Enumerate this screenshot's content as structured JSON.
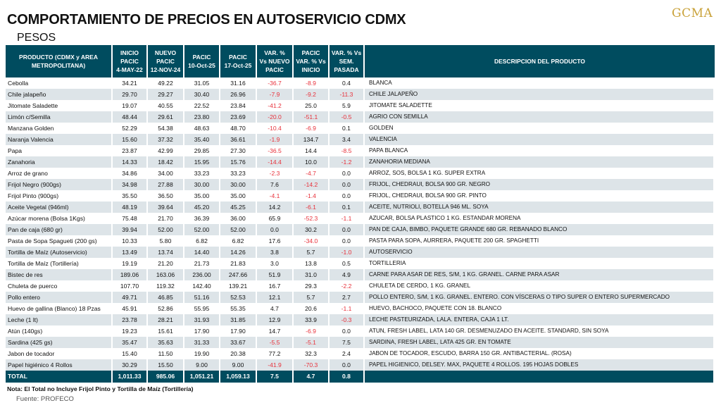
{
  "title": "COMPORTAMIENTO DE PRECIOS EN AUTOSERVICIO CDMX",
  "subtitle": "PESOS",
  "logo": "GCMA",
  "colors": {
    "header": "#004c5f",
    "negative": "#e8313b",
    "alt_row": "#dde4e8",
    "logo": "#c9a23a"
  },
  "headers": [
    [
      "PRODUCTO (CDMX y AREA",
      "METROPOLITANA)"
    ],
    [
      "INICIO",
      "PACIC",
      "4-MAY-22"
    ],
    [
      "NUEVO",
      "PACIC",
      "12-NOV-24"
    ],
    [
      "PACIC",
      "10-Oct-25"
    ],
    [
      "PACIC",
      "17-Oct-25"
    ],
    [
      "VAR. %",
      "Vs  NUEVO",
      "PACIC"
    ],
    [
      "PACIC",
      "VAR. % Vs",
      "INICIO"
    ],
    [
      "VAR. % Vs",
      "SEM.",
      "PASADA"
    ],
    [
      "DESCRIPCION DEL PRODUCTO"
    ]
  ],
  "rows": [
    [
      "Cebolla",
      "34.21",
      "49.22",
      "31.05",
      "31.16",
      "-36.7",
      "-8.9",
      "0.4",
      "BLANCA"
    ],
    [
      "Chile jalapeño",
      "29.70",
      "29.27",
      "30.40",
      "26.96",
      "-7.9",
      "-9.2",
      "-11.3",
      "CHILE JALAPEÑO"
    ],
    [
      "Jitomate Saladette",
      "19.07",
      "40.55",
      "22.52",
      "23.84",
      "-41.2",
      "25.0",
      "5.9",
      "JITOMATE SALADETTE"
    ],
    [
      "Limón c/Semilla",
      "48.44",
      "29.61",
      "23.80",
      "23.69",
      "-20.0",
      "-51.1",
      "-0.5",
      "AGRIO CON SEMILLA"
    ],
    [
      "Manzana Golden",
      "52.29",
      "54.38",
      "48.63",
      "48.70",
      "-10.4",
      "-6.9",
      "0.1",
      "GOLDEN"
    ],
    [
      "Naranja Valencia",
      "15.60",
      "37.32",
      "35.40",
      "36.61",
      "-1.9",
      "134.7",
      "3.4",
      "VALENCIA"
    ],
    [
      "Papa",
      "23.87",
      "42.99",
      "29.85",
      "27.30",
      "-36.5",
      "14.4",
      "-8.5",
      "PAPA BLANCA"
    ],
    [
      "Zanahoria",
      "14.33",
      "18.42",
      "15.95",
      "15.76",
      "-14.4",
      "10.0",
      "-1.2",
      "ZANAHORIA MEDIANA"
    ],
    [
      "Arroz de grano",
      "34.86",
      "34.00",
      "33.23",
      "33.23",
      "-2.3",
      "-4.7",
      "0.0",
      "ARROZ, SOS, BOLSA 1 KG. SUPER EXTRA"
    ],
    [
      "Frijol Negro (900gs)",
      "34.98",
      "27.88",
      "30.00",
      "30.00",
      "7.6",
      "-14.2",
      "0.0",
      "FRIJOL, CHEDRAUI, BOLSA 900 GR. NEGRO"
    ],
    [
      "Frijol Pinto (900gs)",
      "35.50",
      "36.50",
      "35.00",
      "35.00",
      "-4.1",
      "-1.4",
      "0.0",
      "FRIJOL, CHEDRAUI, BOLSA 900 GR. PINTO"
    ],
    [
      "Aceite Vegetal (946ml)",
      "48.19",
      "39.64",
      "45.20",
      "45.25",
      "14.2",
      "-6.1",
      "0.1",
      "ACEITE, NUTRIOLI, BOTELLA 946 ML. SOYA"
    ],
    [
      "Azúcar morena (Bolsa 1Kgs)",
      "75.48",
      "21.70",
      "36.39",
      "36.00",
      "65.9",
      "-52.3",
      "-1.1",
      "AZUCAR, BOLSA PLASTICO 1 KG. ESTANDAR MORENA"
    ],
    [
      "Pan de caja (680 gr)",
      "39.94",
      "52.00",
      "52.00",
      "52.00",
      "0.0",
      "30.2",
      "0.0",
      "PAN DE CAJA, BIMBO, PAQUETE GRANDE 680 GR. REBANADO BLANCO"
    ],
    [
      "Pasta de Sopa Spagueti (200 gs)",
      "10.33",
      "5.80",
      "6.82",
      "6.82",
      "17.6",
      "-34.0",
      "0.0",
      "PASTA PARA SOPA, AURRERA, PAQUETE 200 GR. SPAGHETTI"
    ],
    [
      "Tortilla de Maíz (Autoservicio)",
      "13.49",
      "13.74",
      "14.40",
      "14.26",
      "3.8",
      "5.7",
      "-1.0",
      "AUTOSERVICIO"
    ],
    [
      "Tortilla de Maíz (Tortillería)",
      "19.19",
      "21.20",
      "21.73",
      "21.83",
      "3.0",
      "13.8",
      "0.5",
      "TORTILLERIA"
    ],
    [
      "Bistec de res",
      "189.06",
      "163.06",
      "236.00",
      "247.66",
      "51.9",
      "31.0",
      "4.9",
      "CARNE PARA ASAR DE RES, S/M, 1 KG. GRANEL. CARNE PARA ASAR"
    ],
    [
      "Chuleta de puerco",
      "107.70",
      "119.32",
      "142.40",
      "139.21",
      "16.7",
      "29.3",
      "-2.2",
      "CHULETA DE CERDO, 1 KG. GRANEL"
    ],
    [
      "Pollo entero",
      "49.71",
      "46.85",
      "51.16",
      "52.53",
      "12.1",
      "5.7",
      "2.7",
      "POLLO ENTERO, S/M, 1 KG. GRANEL. ENTERO. CON VÍSCERAS O TIPO SUPER O ENTERO SUPERMERCADO"
    ],
    [
      "Huevo de gallina (Blanco) 18 Pzas",
      "45.91",
      "52.86",
      "55.95",
      "55.35",
      "4.7",
      "20.6",
      "-1.1",
      "HUEVO, BACHOCO, PAQUETE CON 18. BLANCO"
    ],
    [
      "Leche (1 lt)",
      "23.78",
      "28.21",
      "31.93",
      "31.85",
      "12.9",
      "33.9",
      "-0.3",
      "LECHE PASTEURIZADA, LALA. ENTERA, CAJA 1 LT."
    ],
    [
      "Atún (140gs)",
      "19.23",
      "15.61",
      "17.90",
      "17.90",
      "14.7",
      "-6.9",
      "0.0",
      "ATUN, FRESH LABEL, LATA 140 GR. DESMENUZADO EN ACEITE. STANDARD, SIN SOYA"
    ],
    [
      "Sardina (425 gs)",
      "35.47",
      "35.63",
      "31.33",
      "33.67",
      "-5.5",
      "-5.1",
      "7.5",
      "SARDINA, FRESH LABEL, LATA 425 GR. EN TOMATE"
    ],
    [
      "Jabon de tocador",
      "15.40",
      "11.50",
      "19.90",
      "20.38",
      "77.2",
      "32.3",
      "2.4",
      "JABON DE TOCADOR, ESCUDO, BARRA 150 GR. ANTIBACTERIAL. (ROSA)"
    ],
    [
      "Papel higiénico 4 Rollos",
      "30.29",
      "15.50",
      "9.00",
      "9.00",
      "-41.9",
      "-70.3",
      "0.0",
      "PAPEL HIGIENICO, DELSEY. MAX, PAQUETE 4 ROLLOS. 195 HOJAS DOBLES"
    ]
  ],
  "total": [
    "TOTAL",
    "1,011.33",
    "985.06",
    "1,051.21",
    "1,059.13",
    "7.5",
    "4.7",
    "0.8",
    ""
  ],
  "note": "Nota: El Total no Incluye Frijol Pinto y Tortilla de Maíz (Tortillería)",
  "source": "Fuente: PROFECO"
}
